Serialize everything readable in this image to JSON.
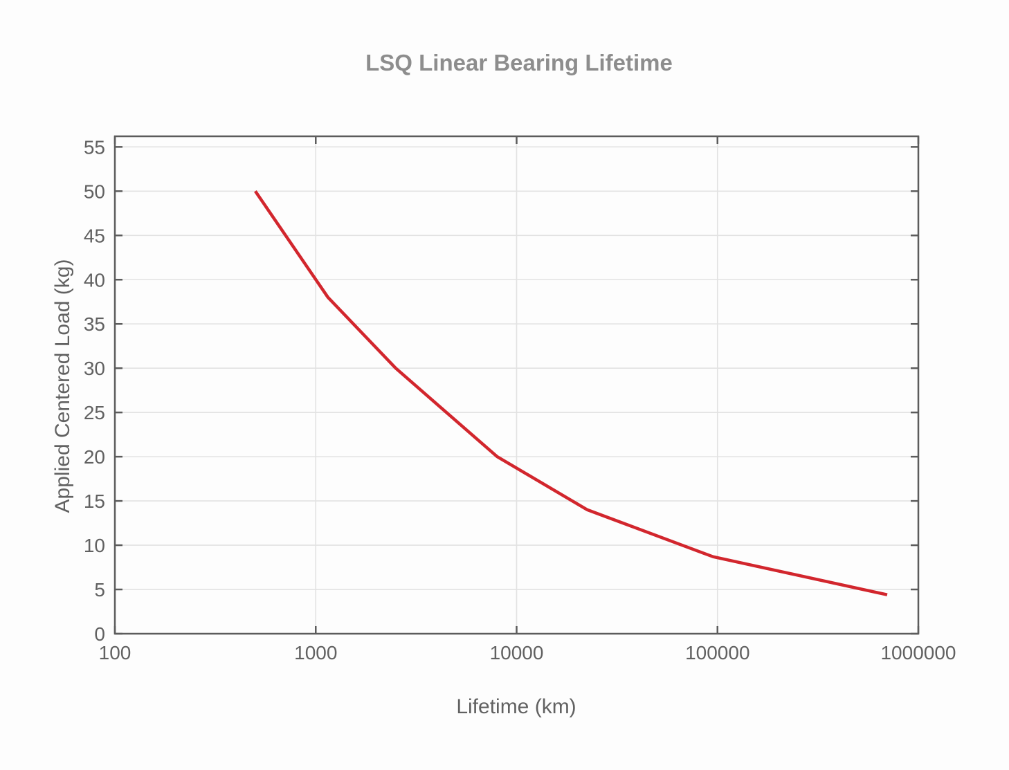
{
  "style": {
    "background": "#fdfdfd",
    "title_color": "#8d8d8d",
    "axis_label_color": "#616161",
    "tick_label_color": "#616161",
    "spine_color": "#5c5c5c",
    "grid_color": "#e2e2e2",
    "line_color": "#d2262d"
  },
  "chart_data": {
    "type": "line",
    "title": "LSQ Linear Bearing Lifetime",
    "xlabel": "Lifetime (km)",
    "ylabel": "Applied Centered Load (kg)",
    "x_scale": "log",
    "y_scale": "linear",
    "xlim": [
      100,
      1000000
    ],
    "ylim": [
      0,
      56.2
    ],
    "x_ticks": [
      100,
      1000,
      10000,
      100000,
      1000000
    ],
    "x_tick_labels": [
      "100",
      "1000",
      "10000",
      "100000",
      "1000000"
    ],
    "y_ticks": [
      0,
      5,
      10,
      15,
      20,
      25,
      30,
      35,
      40,
      45,
      50,
      55
    ],
    "y_tick_labels": [
      "0",
      "5",
      "10",
      "15",
      "20",
      "25",
      "30",
      "35",
      "40",
      "45",
      "50",
      "55"
    ],
    "grid": true,
    "legend": "none",
    "x": [
      500,
      1150,
      2500,
      8000,
      22500,
      95000,
      700000
    ],
    "y": [
      50,
      38,
      30,
      20,
      14,
      8.7,
      4.4
    ],
    "line_color": "#d2262d"
  }
}
